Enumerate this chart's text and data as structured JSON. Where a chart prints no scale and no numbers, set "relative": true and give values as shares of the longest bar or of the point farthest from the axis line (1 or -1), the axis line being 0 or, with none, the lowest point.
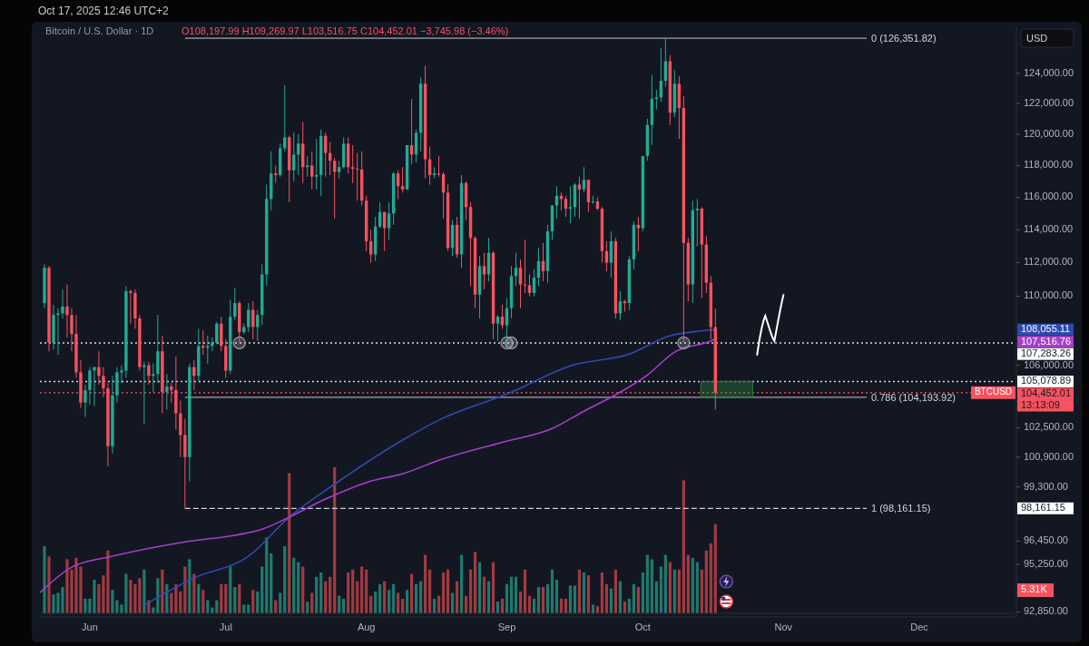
{
  "chart_data": [
    {
      "type": "candlestick",
      "title": "Bitcoin / U.S. Dollar · 1D",
      "log": true,
      "xlim": [
        "2025-05-21",
        "2025-12-22"
      ],
      "xticks": [
        {
          "value": "2025-06-01",
          "label": "Jun"
        },
        {
          "value": "2025-07-01",
          "label": "Jul"
        },
        {
          "value": "2025-08-01",
          "label": "Aug"
        },
        {
          "value": "2025-09-01",
          "label": "Sep"
        },
        {
          "value": "2025-10-01",
          "label": "Oct"
        },
        {
          "value": "2025-11-01",
          "label": "Nov"
        },
        {
          "value": "2025-12-01",
          "label": "Dec"
        }
      ],
      "ylim": [
        92600,
        127100
      ],
      "yticks": [
        {
          "value": 92850,
          "label": "92,850.00"
        },
        {
          "value": 95250,
          "label": "95,250.00"
        },
        {
          "value": 96450,
          "label": "96,450.00"
        },
        {
          "value": 99300,
          "label": "99,300.00"
        },
        {
          "value": 100900,
          "label": "100,900.00"
        },
        {
          "value": 102500,
          "label": "102,500.00"
        },
        {
          "value": 106000,
          "label": "106,000.00"
        },
        {
          "value": 110000,
          "label": "110,000.00"
        },
        {
          "value": 112000,
          "label": "112,000.00"
        },
        {
          "value": 114000,
          "label": "114,000.00"
        },
        {
          "value": 116000,
          "label": "116,000.00"
        },
        {
          "value": 118000,
          "label": "118,000.00"
        },
        {
          "value": 120000,
          "label": "120,000.00"
        },
        {
          "value": 122000,
          "label": "122,000.00"
        },
        {
          "value": 124000,
          "label": "124,000.00"
        }
      ],
      "x": [
        "2025-05-22",
        "2025-05-23",
        "2025-05-24",
        "2025-05-25",
        "2025-05-26",
        "2025-05-27",
        "2025-05-28",
        "2025-05-29",
        "2025-05-30",
        "2025-05-31",
        "2025-06-01",
        "2025-06-02",
        "2025-06-03",
        "2025-06-04",
        "2025-06-05",
        "2025-06-06",
        "2025-06-07",
        "2025-06-08",
        "2025-06-09",
        "2025-06-10",
        "2025-06-11",
        "2025-06-12",
        "2025-06-13",
        "2025-06-14",
        "2025-06-15",
        "2025-06-16",
        "2025-06-17",
        "2025-06-18",
        "2025-06-19",
        "2025-06-20",
        "2025-06-21",
        "2025-06-22",
        "2025-06-23",
        "2025-06-24",
        "2025-06-25",
        "2025-06-26",
        "2025-06-27",
        "2025-06-28",
        "2025-06-29",
        "2025-06-30",
        "2025-07-01",
        "2025-07-02",
        "2025-07-03",
        "2025-07-04",
        "2025-07-05",
        "2025-07-06",
        "2025-07-07",
        "2025-07-08",
        "2025-07-09",
        "2025-07-10",
        "2025-07-11",
        "2025-07-12",
        "2025-07-13",
        "2025-07-14",
        "2025-07-15",
        "2025-07-16",
        "2025-07-17",
        "2025-07-18",
        "2025-07-19",
        "2025-07-20",
        "2025-07-21",
        "2025-07-22",
        "2025-07-23",
        "2025-07-24",
        "2025-07-25",
        "2025-07-26",
        "2025-07-27",
        "2025-07-28",
        "2025-07-29",
        "2025-07-30",
        "2025-07-31",
        "2025-08-01",
        "2025-08-02",
        "2025-08-03",
        "2025-08-04",
        "2025-08-05",
        "2025-08-06",
        "2025-08-07",
        "2025-08-08",
        "2025-08-09",
        "2025-08-10",
        "2025-08-11",
        "2025-08-12",
        "2025-08-13",
        "2025-08-14",
        "2025-08-15",
        "2025-08-16",
        "2025-08-17",
        "2025-08-18",
        "2025-08-19",
        "2025-08-20",
        "2025-08-21",
        "2025-08-22",
        "2025-08-23",
        "2025-08-24",
        "2025-08-25",
        "2025-08-26",
        "2025-08-27",
        "2025-08-28",
        "2025-08-29",
        "2025-08-30",
        "2025-08-31",
        "2025-09-01",
        "2025-09-02",
        "2025-09-03",
        "2025-09-04",
        "2025-09-05",
        "2025-09-06",
        "2025-09-07",
        "2025-09-08",
        "2025-09-09",
        "2025-09-10",
        "2025-09-11",
        "2025-09-12",
        "2025-09-13",
        "2025-09-14",
        "2025-09-15",
        "2025-09-16",
        "2025-09-17",
        "2025-09-18",
        "2025-09-19",
        "2025-09-20",
        "2025-09-21",
        "2025-09-22",
        "2025-09-23",
        "2025-09-24",
        "2025-09-25",
        "2025-09-26",
        "2025-09-27",
        "2025-09-28",
        "2025-09-29",
        "2025-09-30",
        "2025-10-01",
        "2025-10-02",
        "2025-10-03",
        "2025-10-04",
        "2025-10-05",
        "2025-10-06",
        "2025-10-07",
        "2025-10-08",
        "2025-10-09",
        "2025-10-10",
        "2025-10-11",
        "2025-10-12",
        "2025-10-13",
        "2025-10-14",
        "2025-10-15",
        "2025-10-16",
        "2025-10-17"
      ],
      "ohlc": [
        [
          109600,
          111900,
          109300,
          111700
        ],
        [
          111700,
          111800,
          106800,
          107300
        ],
        [
          107300,
          109500,
          106900,
          108900
        ],
        [
          108900,
          109300,
          106600,
          109000
        ],
        [
          109000,
          110400,
          108700,
          109400
        ],
        [
          109400,
          110700,
          107600,
          108900
        ],
        [
          108900,
          109300,
          106800,
          107800
        ],
        [
          107800,
          108900,
          105300,
          105600
        ],
        [
          105600,
          106300,
          103600,
          103900
        ],
        [
          103900,
          104900,
          103100,
          104600
        ],
        [
          104600,
          105900,
          103800,
          105700
        ],
        [
          105700,
          105900,
          103700,
          105900
        ],
        [
          105900,
          106800,
          104900,
          105400
        ],
        [
          105400,
          105900,
          104200,
          104700
        ],
        [
          104700,
          105000,
          100400,
          101500
        ],
        [
          101500,
          105400,
          101100,
          104300
        ],
        [
          104300,
          105900,
          103900,
          105600
        ],
        [
          105600,
          106000,
          105000,
          105700
        ],
        [
          105700,
          110600,
          105300,
          110300
        ],
        [
          110300,
          110400,
          108400,
          110200
        ],
        [
          110200,
          110400,
          108100,
          108700
        ],
        [
          108700,
          108900,
          105700,
          105900
        ],
        [
          105900,
          106200,
          102700,
          106000
        ],
        [
          106000,
          106200,
          104900,
          105400
        ],
        [
          105400,
          106100,
          104500,
          105500
        ],
        [
          105500,
          108900,
          105000,
          106800
        ],
        [
          106800,
          107700,
          103300,
          104500
        ],
        [
          104500,
          105500,
          103500,
          104800
        ],
        [
          104800,
          105000,
          103900,
          104600
        ],
        [
          104600,
          106500,
          102400,
          103300
        ],
        [
          103300,
          104000,
          100900,
          102100
        ],
        [
          102100,
          103000,
          98160,
          100900
        ],
        [
          100900,
          106100,
          99600,
          105900
        ],
        [
          105900,
          106300,
          104600,
          105400
        ],
        [
          105400,
          108100,
          105100,
          107100
        ],
        [
          107100,
          108000,
          106600,
          107000
        ],
        [
          107000,
          107700,
          106100,
          107100
        ],
        [
          107100,
          107600,
          106800,
          107300
        ],
        [
          107300,
          108500,
          107200,
          108400
        ],
        [
          108400,
          108800,
          106800,
          107100
        ],
        [
          107100,
          107500,
          105300,
          105700
        ],
        [
          105700,
          109800,
          105500,
          108800
        ],
        [
          108800,
          110500,
          108600,
          109600
        ],
        [
          109600,
          109700,
          107300,
          107900
        ],
        [
          107900,
          108400,
          107800,
          108200
        ],
        [
          108200,
          109600,
          107900,
          109200
        ],
        [
          109200,
          109700,
          107500,
          108200
        ],
        [
          108200,
          109200,
          107400,
          108900
        ],
        [
          108900,
          111900,
          108300,
          111300
        ],
        [
          111300,
          116800,
          110600,
          115900
        ],
        [
          115900,
          118900,
          115200,
          117500
        ],
        [
          117500,
          118000,
          116900,
          117400
        ],
        [
          117400,
          119400,
          117300,
          119100
        ],
        [
          119100,
          123200,
          118900,
          119800
        ],
        [
          119800,
          119900,
          115700,
          117700
        ],
        [
          117700,
          120100,
          117000,
          118700
        ],
        [
          118700,
          120000,
          117400,
          119400
        ],
        [
          119400,
          120800,
          116900,
          117900
        ],
        [
          117900,
          118600,
          117300,
          118000
        ],
        [
          118000,
          118900,
          116500,
          117300
        ],
        [
          117300,
          119700,
          116500,
          117400
        ],
        [
          117400,
          120300,
          116100,
          119900
        ],
        [
          119900,
          120100,
          117300,
          118800
        ],
        [
          118800,
          119500,
          117400,
          118300
        ],
        [
          118300,
          118500,
          114700,
          117600
        ],
        [
          117600,
          118300,
          117200,
          117900
        ],
        [
          117900,
          119800,
          117800,
          119400
        ],
        [
          119400,
          119800,
          117500,
          117900
        ],
        [
          117900,
          119300,
          116900,
          117800
        ],
        [
          117800,
          118800,
          115800,
          117750
        ],
        [
          117750,
          118900,
          115500,
          115800
        ],
        [
          115800,
          116100,
          112700,
          113300
        ],
        [
          113300,
          114000,
          112000,
          112500
        ],
        [
          112500,
          114800,
          112100,
          114200
        ],
        [
          114200,
          115700,
          114100,
          115100
        ],
        [
          115100,
          115100,
          112700,
          114100
        ],
        [
          114100,
          115700,
          113400,
          115000
        ],
        [
          115000,
          117600,
          114300,
          117500
        ],
        [
          117500,
          117700,
          115900,
          116700
        ],
        [
          116700,
          117900,
          116300,
          116500
        ],
        [
          116500,
          119300,
          116500,
          119300
        ],
        [
          119300,
          122300,
          118100,
          118700
        ],
        [
          118700,
          120300,
          118200,
          120100
        ],
        [
          120100,
          123700,
          118900,
          123300
        ],
        [
          123300,
          124500,
          117200,
          118400
        ],
        [
          118400,
          119200,
          116800,
          117400
        ],
        [
          117400,
          117900,
          117200,
          117500
        ],
        [
          117500,
          118600,
          117300,
          117450
        ],
        [
          117450,
          117600,
          114700,
          116300
        ],
        [
          116300,
          116800,
          112700,
          112900
        ],
        [
          112900,
          114600,
          112400,
          114300
        ],
        [
          114300,
          114800,
          112300,
          112500
        ],
        [
          112500,
          117400,
          111700,
          116900
        ],
        [
          116900,
          117000,
          114600,
          115400
        ],
        [
          115400,
          115700,
          110600,
          113500
        ],
        [
          113500,
          113600,
          109300,
          110100
        ],
        [
          110100,
          112400,
          108700,
          111800
        ],
        [
          111800,
          112600,
          110400,
          111300
        ],
        [
          111300,
          113500,
          110900,
          112600
        ],
        [
          112600,
          112700,
          107500,
          108400
        ],
        [
          108400,
          108900,
          107400,
          108800
        ],
        [
          108800,
          109500,
          108100,
          108300
        ],
        [
          108300,
          109900,
          107300,
          109300
        ],
        [
          109300,
          111800,
          108700,
          111200
        ],
        [
          111200,
          112600,
          110600,
          111700
        ],
        [
          111700,
          112200,
          109300,
          110700
        ],
        [
          110700,
          113400,
          110200,
          110650
        ],
        [
          110650,
          111300,
          110000,
          110200
        ],
        [
          110200,
          111600,
          110000,
          111100
        ],
        [
          111100,
          112900,
          110600,
          112100
        ],
        [
          112100,
          113200,
          110900,
          111500
        ],
        [
          111500,
          114300,
          110800,
          113900
        ],
        [
          113900,
          115500,
          113400,
          115500
        ],
        [
          115500,
          116700,
          114700,
          116100
        ],
        [
          116100,
          116300,
          115200,
          115900
        ],
        [
          115900,
          116100,
          114800,
          115300
        ],
        [
          115300,
          116700,
          114400,
          115400
        ],
        [
          115400,
          116900,
          114800,
          116800
        ],
        [
          116800,
          117300,
          114700,
          116500
        ],
        [
          116500,
          117900,
          116300,
          117100
        ],
        [
          117100,
          117100,
          115100,
          115700
        ],
        [
          115700,
          116100,
          115600,
          115750
        ],
        [
          115750,
          116000,
          115200,
          115300
        ],
        [
          115300,
          115400,
          112000,
          112700
        ],
        [
          112700,
          113300,
          111500,
          112000
        ],
        [
          112000,
          113900,
          111100,
          113300
        ],
        [
          113300,
          113500,
          108700,
          109000
        ],
        [
          109000,
          110300,
          108600,
          109700
        ],
        [
          109700,
          109800,
          109100,
          109600
        ],
        [
          109600,
          112400,
          109200,
          112200
        ],
        [
          112200,
          114500,
          111600,
          114300
        ],
        [
          114300,
          114800,
          112700,
          114100
        ],
        [
          114100,
          118600,
          113900,
          118600
        ],
        [
          118600,
          121000,
          118300,
          120600
        ],
        [
          120600,
          123900,
          119300,
          122300
        ],
        [
          122300,
          122900,
          121600,
          122400
        ],
        [
          122400,
          125700,
          122100,
          123500
        ],
        [
          123500,
          126350,
          123100,
          124800
        ],
        [
          124800,
          125200,
          120600,
          121400
        ],
        [
          121400,
          124200,
          121100,
          123300
        ],
        [
          123300,
          123800,
          119700,
          121700
        ],
        [
          121700,
          122500,
          107300,
          113200
        ],
        [
          113200,
          113500,
          109700,
          110700
        ],
        [
          110700,
          115800,
          109600,
          115200
        ],
        [
          115200,
          115900,
          113000,
          115300
        ],
        [
          115300,
          115400,
          109900,
          113100
        ],
        [
          113100,
          113600,
          110200,
          110800
        ],
        [
          110800,
          111200,
          107500,
          108200
        ],
        [
          108197.99,
          109269.97,
          103516.75,
          104452.01
        ]
      ],
      "colors": [
        "#22ab94",
        "#f7525f",
        "#22ab94",
        "#22ab94",
        "#22ab94",
        "#f7525f",
        "#f7525f",
        "#f7525f",
        "#f7525f",
        "#22ab94",
        "#22ab94",
        "#22ab94",
        "#f7525f",
        "#f7525f",
        "#f7525f",
        "#22ab94",
        "#22ab94",
        "#22ab94",
        "#22ab94",
        "#f7525f",
        "#f7525f",
        "#f7525f",
        "#22ab94",
        "#f7525f",
        "#22ab94",
        "#22ab94",
        "#f7525f",
        "#22ab94",
        "#f7525f",
        "#f7525f",
        "#f7525f",
        "#f7525f",
        "#22ab94",
        "#f7525f",
        "#22ab94",
        "#f7525f",
        "#22ab94",
        "#22ab94",
        "#22ab94",
        "#f7525f",
        "#f7525f",
        "#22ab94",
        "#22ab94",
        "#f7525f",
        "#22ab94",
        "#22ab94",
        "#f7525f",
        "#22ab94",
        "#22ab94",
        "#22ab94",
        "#22ab94",
        "#f7525f",
        "#22ab94",
        "#22ab94",
        "#f7525f",
        "#22ab94",
        "#22ab94",
        "#f7525f",
        "#22ab94",
        "#f7525f",
        "#22ab94",
        "#22ab94",
        "#f7525f",
        "#f7525f",
        "#f7525f",
        "#22ab94",
        "#22ab94",
        "#f7525f",
        "#f7525f",
        "#f7525f",
        "#f7525f",
        "#f7525f",
        "#f7525f",
        "#22ab94",
        "#22ab94",
        "#f7525f",
        "#22ab94",
        "#22ab94",
        "#f7525f",
        "#f7525f",
        "#22ab94",
        "#f7525f",
        "#22ab94",
        "#22ab94",
        "#f7525f",
        "#f7525f",
        "#22ab94",
        "#f7525f",
        "#f7525f",
        "#f7525f",
        "#22ab94",
        "#f7525f",
        "#22ab94",
        "#f7525f",
        "#f7525f",
        "#f7525f",
        "#22ab94",
        "#f7525f",
        "#22ab94",
        "#f7525f",
        "#22ab94",
        "#f7525f",
        "#22ab94",
        "#22ab94",
        "#22ab94",
        "#f7525f",
        "#f7525f",
        "#f7525f",
        "#22ab94",
        "#22ab94",
        "#f7525f",
        "#22ab94",
        "#22ab94",
        "#22ab94",
        "#f7525f",
        "#f7525f",
        "#22ab94",
        "#22ab94",
        "#f7525f",
        "#22ab94",
        "#f7525f",
        "#22ab94",
        "#f7525f",
        "#f7525f",
        "#f7525f",
        "#22ab94",
        "#f7525f",
        "#22ab94",
        "#f7525f",
        "#22ab94",
        "#22ab94",
        "#f7525f",
        "#22ab94",
        "#22ab94",
        "#22ab94",
        "#22ab94",
        "#22ab94",
        "#22ab94",
        "#f7525f",
        "#22ab94",
        "#f7525f",
        "#f7525f",
        "#f7525f",
        "#22ab94",
        "#22ab94",
        "#f7525f",
        "#f7525f",
        "#f7525f",
        "#f7525f"
      ],
      "series": [
        {
          "type": "line",
          "color": "#2e4bb0",
          "x": [
            "2025-06-13",
            "2025-06-24",
            "2025-07-06",
            "2025-07-15",
            "2025-07-26",
            "2025-08-09",
            "2025-08-17",
            "2025-09-02",
            "2025-09-15",
            "2025-09-28",
            "2025-10-07",
            "2025-10-13",
            "2025-10-17"
          ],
          "values": [
            93190,
            94560,
            95670,
            97700,
            99610,
            101830,
            102920,
            104480,
            105970,
            106640,
            107700,
            107950,
            108055.11
          ]
        },
        {
          "type": "line",
          "color": "#a63fc9",
          "x": [
            "2025-05-21",
            "2025-05-28",
            "2025-06-06",
            "2025-06-22",
            "2025-07-05",
            "2025-07-09",
            "2025-07-15",
            "2025-07-23",
            "2025-08-02",
            "2025-08-09",
            "2025-08-17",
            "2025-08-31",
            "2025-09-11",
            "2025-09-18",
            "2025-09-26",
            "2025-10-02",
            "2025-10-08",
            "2025-10-16",
            "2025-10-17"
          ],
          "values": [
            93820,
            95110,
            95670,
            96410,
            96840,
            97070,
            97700,
            98650,
            99610,
            100000,
            100730,
            101710,
            102460,
            103420,
            104480,
            105450,
            106750,
            107400,
            107516.76
          ]
        }
      ],
      "ref_lines": [
        {
          "axis": "y",
          "value": 126351.82,
          "label": "0 (126,351.82)",
          "color": "#b2b5be",
          "line_style": "solid"
        },
        {
          "axis": "y",
          "value": 104193.92,
          "label": "0.786 (104,193.92)",
          "color": "#b2b5be",
          "line_style": "solid"
        },
        {
          "axis": "y",
          "value": 98161.15,
          "label": "1 (98,161.15)",
          "color": "#e0e3eb",
          "line_style": "dashed"
        },
        {
          "axis": "y",
          "value": 107283.26,
          "label": "107,283.26",
          "color": "#ffffff",
          "line_style": "dotted"
        },
        {
          "axis": "y",
          "value": 105078.89,
          "label": "105,078.89",
          "color": "#ffffff",
          "line_style": "dotted"
        },
        {
          "axis": "y",
          "value": 104452.01,
          "label": "104,452.01",
          "color": "#f7525f",
          "line_style": "dotted"
        }
      ],
      "annotations": [
        "Oct 17, 2025 12:46 UTC+2",
        "O108,197.99 H109,269.97 L103,516.75 C104,452.01 −3,745.98 (−3.46%)",
        "USD",
        "BTCUSD",
        "13:13:09",
        "108,055.11",
        "107,516.76",
        "98,161.15"
      ]
    },
    {
      "type": "bar",
      "relative": true,
      "categories": [
        null,
        null,
        null,
        null,
        null,
        null,
        null,
        null,
        null,
        null,
        null,
        null,
        null,
        null,
        null,
        null,
        null,
        null,
        null,
        null,
        null,
        null,
        null,
        null,
        null,
        null,
        null,
        null,
        null,
        null,
        null,
        null,
        null,
        null,
        null,
        null,
        null,
        null,
        null,
        null,
        null,
        null,
        null,
        null,
        null,
        null,
        null,
        null,
        null,
        null,
        null,
        null,
        null,
        null,
        null,
        null,
        null,
        null,
        null,
        null,
        null,
        null,
        null,
        null,
        null,
        null,
        null,
        null,
        null,
        null,
        null,
        null,
        null,
        null,
        null,
        null,
        null,
        null,
        null,
        null,
        null,
        null,
        null,
        null,
        null,
        null,
        null,
        null,
        null,
        null,
        null,
        null,
        null,
        null,
        null,
        null,
        null,
        null,
        null,
        null,
        null,
        null,
        null,
        null,
        null,
        null,
        null,
        null,
        null,
        null,
        null,
        null,
        null,
        null,
        null,
        null,
        null,
        null,
        null,
        null,
        null,
        null,
        null,
        null,
        null,
        null,
        null,
        null,
        null,
        null,
        null,
        null,
        null,
        null,
        null,
        null,
        null,
        null,
        null,
        null,
        null,
        null,
        null,
        null,
        null,
        null,
        null,
        null,
        null
      ],
      "values": [
        0.46,
        0.39,
        0.13,
        0.14,
        0.18,
        0.37,
        0.3,
        0.38,
        0.32,
        0.1,
        0.1,
        0.23,
        0.2,
        0.26,
        0.43,
        0.16,
        0.09,
        0.06,
        0.27,
        0.23,
        0.2,
        0.24,
        0.3,
        0.09,
        0.04,
        0.24,
        0.3,
        0.2,
        0.14,
        0.2,
        0.15,
        0.32,
        0.37,
        0.27,
        0.2,
        0.16,
        0.09,
        0.04,
        0.09,
        0.2,
        0.2,
        0.32,
        0.18,
        0.2,
        0.06,
        0.06,
        0.16,
        0.15,
        0.32,
        0.52,
        0.41,
        0.09,
        0.14,
        0.46,
        0.96,
        0.38,
        0.35,
        0.32,
        0.08,
        0.14,
        0.25,
        0.28,
        0.22,
        0.25,
        1,
        0.12,
        0.1,
        0.28,
        0.3,
        0.22,
        0.32,
        0.3,
        0.12,
        0.15,
        0.2,
        0.22,
        0.16,
        0.2,
        0.14,
        0.1,
        0.16,
        0.27,
        0.2,
        0.22,
        0.4,
        0.3,
        0.1,
        0.12,
        0.28,
        0.3,
        0.14,
        0.22,
        0.4,
        0.12,
        0.3,
        0.42,
        0.35,
        0.25,
        0.22,
        0.35,
        0.08,
        0.1,
        0.2,
        0.25,
        0.25,
        0.15,
        0.3,
        0.12,
        0.1,
        0.18,
        0.18,
        0.2,
        0.3,
        0.23,
        0.1,
        0.1,
        0.19,
        0.19,
        0.3,
        0.28,
        0.26,
        0.06,
        0.05,
        0.28,
        0.2,
        0.17,
        0.3,
        0.22,
        0.08,
        0.1,
        0.2,
        0.18,
        0.28,
        0.4,
        0.37,
        0.22,
        0.32,
        0.4,
        0.35,
        0.3,
        0.3,
        0.91,
        0.4,
        0.38,
        0.35,
        0.3,
        0.43,
        0.48,
        0.61
      ],
      "colors": [
        "#1f7a6e",
        "#a23a40",
        "#1f7a6e",
        "#1f7a6e",
        "#1f7a6e",
        "#a23a40",
        "#a23a40",
        "#a23a40",
        "#a23a40",
        "#1f7a6e",
        "#1f7a6e",
        "#1f7a6e",
        "#a23a40",
        "#a23a40",
        "#a23a40",
        "#1f7a6e",
        "#1f7a6e",
        "#1f7a6e",
        "#1f7a6e",
        "#a23a40",
        "#a23a40",
        "#a23a40",
        "#1f7a6e",
        "#a23a40",
        "#1f7a6e",
        "#1f7a6e",
        "#a23a40",
        "#1f7a6e",
        "#a23a40",
        "#a23a40",
        "#a23a40",
        "#a23a40",
        "#1f7a6e",
        "#a23a40",
        "#1f7a6e",
        "#a23a40",
        "#1f7a6e",
        "#1f7a6e",
        "#1f7a6e",
        "#a23a40",
        "#a23a40",
        "#1f7a6e",
        "#1f7a6e",
        "#a23a40",
        "#1f7a6e",
        "#1f7a6e",
        "#a23a40",
        "#1f7a6e",
        "#1f7a6e",
        "#1f7a6e",
        "#1f7a6e",
        "#a23a40",
        "#1f7a6e",
        "#1f7a6e",
        "#a23a40",
        "#1f7a6e",
        "#1f7a6e",
        "#a23a40",
        "#1f7a6e",
        "#a23a40",
        "#1f7a6e",
        "#1f7a6e",
        "#a23a40",
        "#a23a40",
        "#a23a40",
        "#1f7a6e",
        "#1f7a6e",
        "#a23a40",
        "#a23a40",
        "#a23a40",
        "#a23a40",
        "#a23a40",
        "#a23a40",
        "#1f7a6e",
        "#1f7a6e",
        "#a23a40",
        "#1f7a6e",
        "#1f7a6e",
        "#a23a40",
        "#a23a40",
        "#1f7a6e",
        "#a23a40",
        "#1f7a6e",
        "#1f7a6e",
        "#a23a40",
        "#a23a40",
        "#1f7a6e",
        "#a23a40",
        "#a23a40",
        "#a23a40",
        "#1f7a6e",
        "#a23a40",
        "#1f7a6e",
        "#a23a40",
        "#a23a40",
        "#a23a40",
        "#1f7a6e",
        "#a23a40",
        "#1f7a6e",
        "#a23a40",
        "#1f7a6e",
        "#a23a40",
        "#1f7a6e",
        "#1f7a6e",
        "#1f7a6e",
        "#a23a40",
        "#a23a40",
        "#a23a40",
        "#1f7a6e",
        "#1f7a6e",
        "#a23a40",
        "#1f7a6e",
        "#1f7a6e",
        "#1f7a6e",
        "#a23a40",
        "#a23a40",
        "#1f7a6e",
        "#1f7a6e",
        "#a23a40",
        "#1f7a6e",
        "#a23a40",
        "#1f7a6e",
        "#a23a40",
        "#a23a40",
        "#a23a40",
        "#1f7a6e",
        "#a23a40",
        "#1f7a6e",
        "#a23a40",
        "#1f7a6e",
        "#1f7a6e",
        "#a23a40",
        "#1f7a6e",
        "#1f7a6e",
        "#1f7a6e",
        "#1f7a6e",
        "#1f7a6e",
        "#1f7a6e",
        "#a23a40",
        "#1f7a6e",
        "#a23a40",
        "#a23a40",
        "#a23a40",
        "#1f7a6e",
        "#1f7a6e",
        "#a23a40",
        "#a23a40",
        "#a23a40",
        "#a23a40"
      ],
      "annotations": [
        "5.31K"
      ]
    }
  ]
}
